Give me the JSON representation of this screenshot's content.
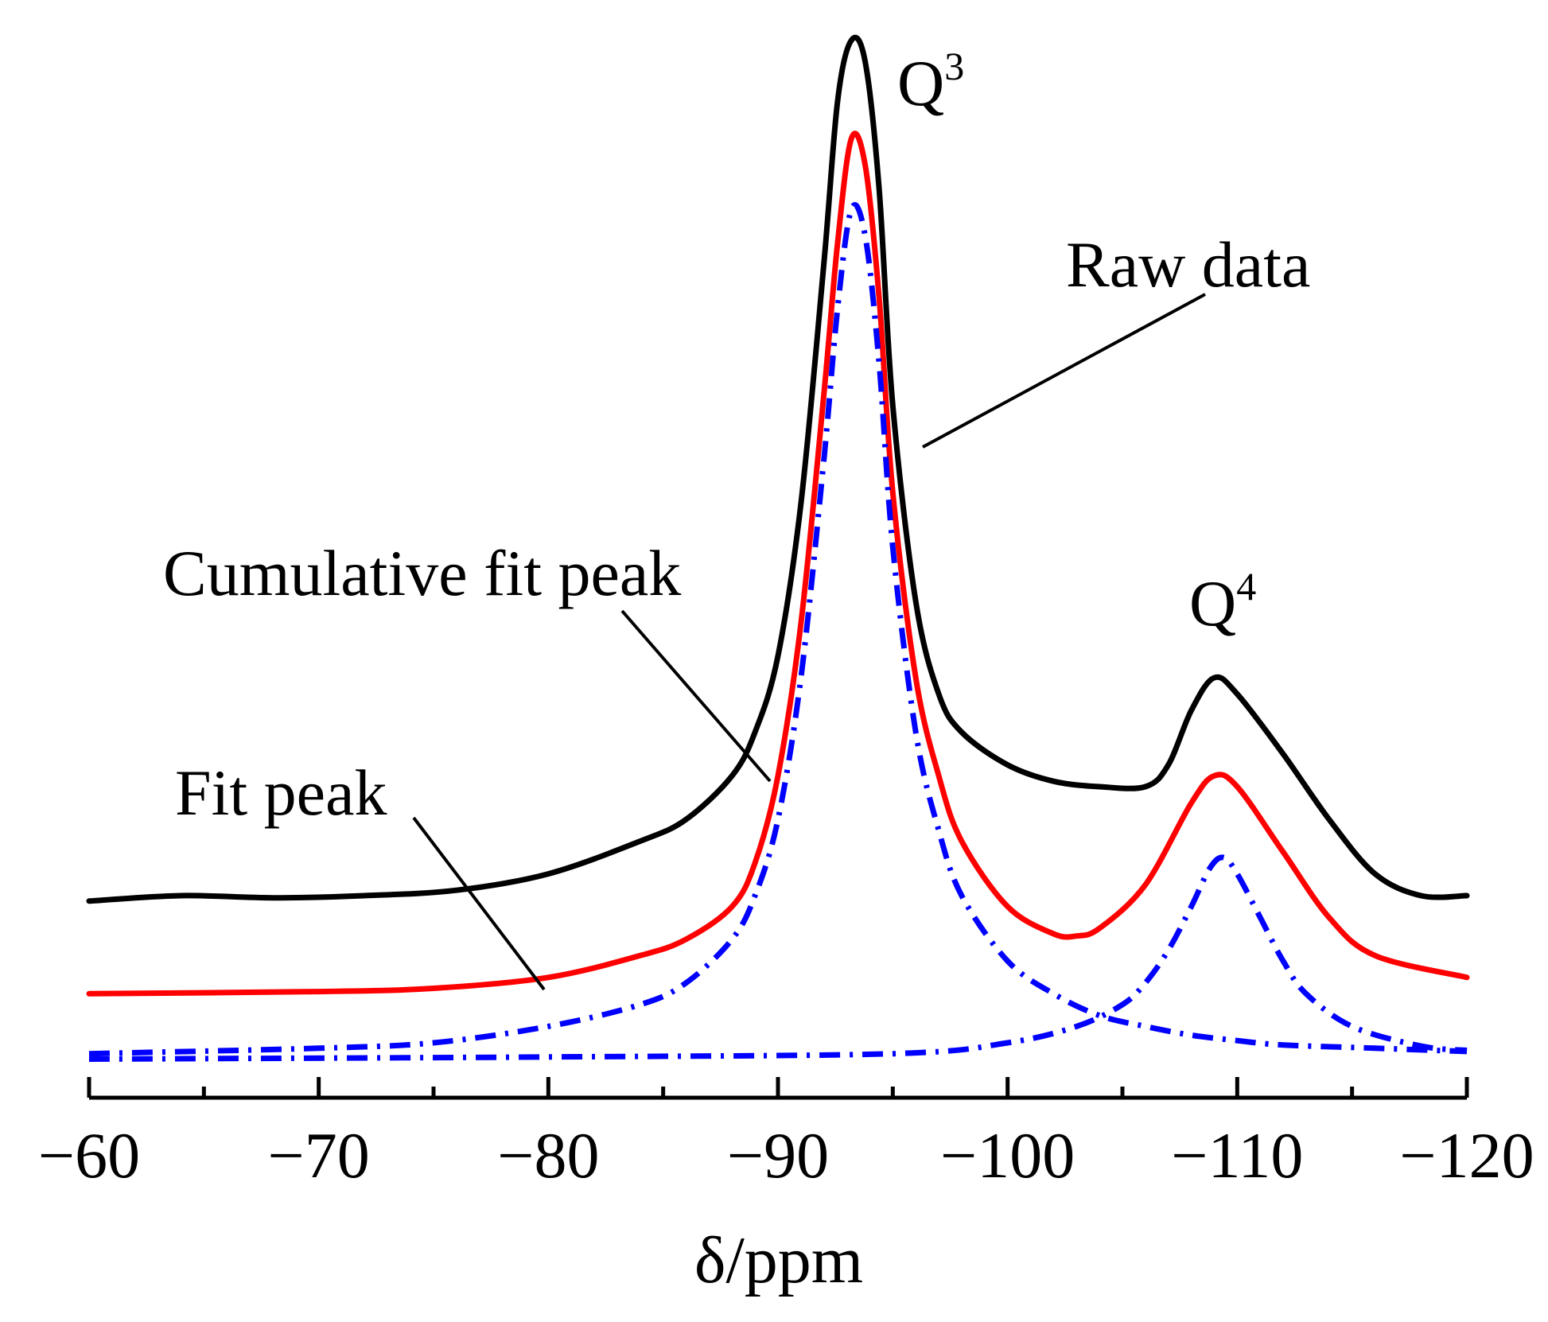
{
  "chart_data": {
    "type": "line",
    "title": "",
    "xlabel": "δ/ppm",
    "ylabel": "",
    "xlim": [
      -60,
      -120
    ],
    "ylim": [
      0,
      1.0
    ],
    "grid": false,
    "x_ticks": [
      -60,
      -70,
      -80,
      -90,
      -100,
      -110,
      -120
    ],
    "x_tick_labels": [
      "−60",
      "−70",
      "−80",
      "−90",
      "−100",
      "−110",
      "−120"
    ],
    "series": [
      {
        "name": "Raw data",
        "color": "#000000",
        "style": "solid",
        "x": [
          -60,
          -64,
          -68,
          -72,
          -76,
          -80,
          -84,
          -86,
          -88,
          -89,
          -90,
          -91,
          -92,
          -92.6,
          -93.2,
          -93.8,
          -94.4,
          -95,
          -96,
          -97,
          -98,
          -100,
          -102,
          -104,
          -106,
          -107,
          -108,
          -109,
          -110,
          -112,
          -114,
          -116,
          -118,
          -120
        ],
        "y": [
          0.195,
          0.2,
          0.198,
          0.2,
          0.205,
          0.22,
          0.25,
          0.27,
          0.31,
          0.35,
          0.42,
          0.56,
          0.78,
          0.93,
          0.985,
          0.965,
          0.85,
          0.65,
          0.47,
          0.385,
          0.35,
          0.32,
          0.305,
          0.3,
          0.3,
          0.32,
          0.37,
          0.4,
          0.385,
          0.33,
          0.27,
          0.22,
          0.2,
          0.2
        ]
      },
      {
        "name": "Cumulative fit peak",
        "color": "#ff0000",
        "style": "solid",
        "x": [
          -60,
          -70,
          -75,
          -80,
          -84,
          -86,
          -88,
          -89,
          -90,
          -91,
          -92,
          -92.6,
          -93.2,
          -93.8,
          -94.4,
          -95,
          -96,
          -97,
          -98,
          -100,
          -102,
          -103,
          -104,
          -106,
          -108,
          -109,
          -110,
          -112,
          -114,
          -116,
          -120
        ],
        "y": [
          0.11,
          0.112,
          0.115,
          0.125,
          0.145,
          0.16,
          0.19,
          0.23,
          0.31,
          0.45,
          0.66,
          0.8,
          0.895,
          0.87,
          0.75,
          0.57,
          0.4,
          0.31,
          0.25,
          0.19,
          0.165,
          0.163,
          0.17,
          0.21,
          0.285,
          0.31,
          0.3,
          0.24,
          0.18,
          0.145,
          0.125
        ]
      },
      {
        "name": "Fit peak Q3",
        "color": "#0000ff",
        "style": "dashdot",
        "x": [
          -60,
          -70,
          -75,
          -80,
          -84,
          -86,
          -88,
          -89,
          -90,
          -91,
          -92,
          -92.6,
          -93.2,
          -93.8,
          -94.4,
          -95,
          -96,
          -97,
          -98,
          -100,
          -102,
          -104,
          -106,
          -108,
          -110,
          -112,
          -116,
          -120
        ],
        "y": [
          0.055,
          0.06,
          0.065,
          0.08,
          0.1,
          0.12,
          0.16,
          0.2,
          0.27,
          0.4,
          0.6,
          0.74,
          0.83,
          0.805,
          0.69,
          0.52,
          0.35,
          0.26,
          0.2,
          0.14,
          0.11,
          0.09,
          0.08,
          0.072,
          0.067,
          0.063,
          0.06,
          0.057
        ]
      },
      {
        "name": "Fit peak Q4",
        "color": "#0000ff",
        "style": "dashdot",
        "x": [
          -60,
          -80,
          -95,
          -100,
          -103,
          -105,
          -106,
          -107,
          -108,
          -108.8,
          -109.4,
          -110,
          -111,
          -112,
          -113,
          -115,
          -118,
          -120
        ],
        "y": [
          0.05,
          0.052,
          0.055,
          0.065,
          0.08,
          0.1,
          0.12,
          0.15,
          0.19,
          0.225,
          0.235,
          0.22,
          0.18,
          0.14,
          0.11,
          0.08,
          0.062,
          0.058
        ]
      }
    ],
    "annotations": [
      {
        "text": "Q",
        "superscript": "3",
        "x": -93.3,
        "y": 0.97
      },
      {
        "text": "Q",
        "superscript": "4",
        "x": -109.2,
        "y": 0.45
      },
      {
        "text": "Raw data",
        "x": -108,
        "y": 0.78
      },
      {
        "text": "Cumulative fit peak",
        "x": -78,
        "y": 0.5
      },
      {
        "text": "Fit peak",
        "x": -76,
        "y": 0.26
      }
    ]
  }
}
